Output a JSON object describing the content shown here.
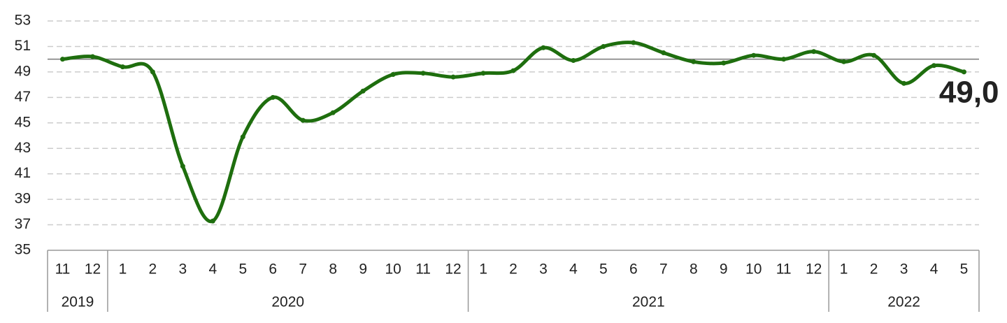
{
  "chart_data": {
    "type": "line",
    "categories": [
      "11",
      "12",
      "1",
      "2",
      "3",
      "4",
      "5",
      "6",
      "7",
      "8",
      "9",
      "10",
      "11",
      "12",
      "1",
      "2",
      "3",
      "4",
      "5",
      "6",
      "7",
      "8",
      "9",
      "10",
      "11",
      "12",
      "1",
      "2",
      "3",
      "4",
      "5"
    ],
    "groups": [
      {
        "label": "2019",
        "span": 2
      },
      {
        "label": "2020",
        "span": 12
      },
      {
        "label": "2021",
        "span": 12
      },
      {
        "label": "2022",
        "span": 5
      }
    ],
    "series": [
      {
        "color": "#1e6e0e",
        "values": [
          50.0,
          50.2,
          49.4,
          49.0,
          41.6,
          37.3,
          43.9,
          47.0,
          45.2,
          45.8,
          47.5,
          48.8,
          48.9,
          48.6,
          48.9,
          49.1,
          50.9,
          49.9,
          51.0,
          51.3,
          50.5,
          49.8,
          49.7,
          50.3,
          50.0,
          50.6,
          49.8,
          50.3,
          48.1,
          49.5,
          49.0
        ],
        "value_labels": [
          null,
          null,
          null,
          null,
          null,
          null,
          null,
          null,
          null,
          null,
          null,
          null,
          null,
          null,
          null,
          null,
          null,
          null,
          null,
          null,
          null,
          null,
          null,
          null,
          null,
          null,
          null,
          null,
          null,
          null,
          "49,0"
        ],
        "value_label_color": "#c00000"
      }
    ],
    "ylim": [
      35,
      53
    ],
    "yticks": [
      35,
      37,
      39,
      41,
      43,
      45,
      47,
      49,
      51,
      53
    ],
    "reference_line": 50,
    "grid": true
  }
}
